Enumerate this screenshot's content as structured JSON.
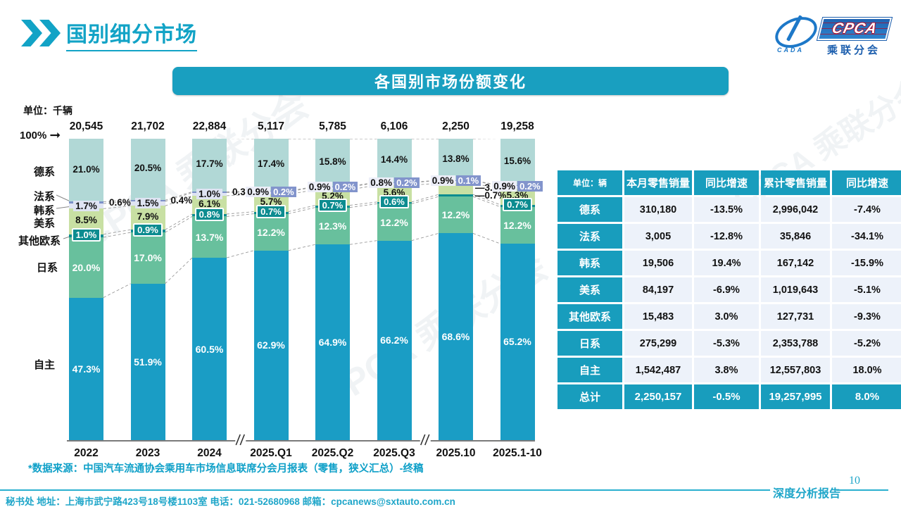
{
  "page": {
    "title": "国别细分市场",
    "page_number": "10",
    "report_label": "深度分析报告",
    "watermark_text": "CPCA 乘联分会"
  },
  "logo": {
    "cpca": "CPCA",
    "sub_brand": "乘联分会",
    "cada": "CADA"
  },
  "banner": {
    "title": "各国别市场份额变化"
  },
  "chart_data": {
    "type": "bar",
    "subtype": "100-percent-stacked-column",
    "title": "各国别市场份额变化",
    "unit_label": "单位：千辆",
    "top_axis_label": "100%",
    "grid": false,
    "connector_style": "dashed",
    "categories": [
      "2022",
      "2023",
      "2024",
      "2025.Q1",
      "2025.Q2",
      "2025.Q3",
      "2025.10",
      "2025.1-10"
    ],
    "totals_thousand_units": [
      "20,545",
      "21,702",
      "22,884",
      "5,117",
      "5,785",
      "6,106",
      "2,250",
      "19,258"
    ],
    "axis_break_after_indices": [
      2,
      5
    ],
    "left_axis_category_labels": [
      "德系",
      "法系",
      "韩系",
      "美系",
      "其他欧系",
      "日系",
      "自主"
    ],
    "series": [
      {
        "name": "自主",
        "color": "#1a9dc5",
        "label_color": "#ffffff",
        "values": [
          47.3,
          51.9,
          60.5,
          62.9,
          64.9,
          66.2,
          68.6,
          65.2
        ]
      },
      {
        "name": "日系",
        "color": "#68c09d",
        "label_color": "#ffffff",
        "values": [
          20.0,
          17.0,
          13.7,
          12.2,
          12.3,
          12.2,
          12.2,
          12.2
        ]
      },
      {
        "name": "其他欧系",
        "color": "#0c8c90",
        "label_color": "#ffffff",
        "values": [
          1.0,
          0.9,
          0.8,
          0.7,
          0.7,
          0.6,
          0.7,
          0.7
        ]
      },
      {
        "name": "美系",
        "color": "#c8e0a3",
        "label_color": "#111111",
        "values": [
          8.5,
          7.9,
          6.1,
          5.7,
          5.2,
          5.6,
          3.7,
          5.3
        ]
      },
      {
        "name": "韩系",
        "color": "#dfe4f3",
        "label_color": "#111111",
        "values": [
          1.7,
          1.5,
          1.0,
          0.9,
          0.9,
          0.8,
          0.9,
          0.9
        ]
      },
      {
        "name": "法系",
        "color": "#7d91c9",
        "label_color": "#ffffff",
        "values": [
          0.6,
          0.4,
          0.3,
          0.2,
          0.2,
          0.2,
          0.1,
          0.2
        ]
      },
      {
        "name": "德系",
        "color": "#b1d8d6",
        "label_color": "#111111",
        "values": [
          21.0,
          20.5,
          17.7,
          17.4,
          15.8,
          14.4,
          13.8,
          15.6
        ]
      }
    ]
  },
  "table": {
    "unit_header": "单位：辆",
    "headers": [
      "本月零售销量",
      "同比增速",
      "累计零售销量",
      "同比增速"
    ],
    "rows": [
      {
        "label": "德系",
        "cells": [
          "310,180",
          "-13.5%",
          "2,996,042",
          "-7.4%"
        ]
      },
      {
        "label": "法系",
        "cells": [
          "3,005",
          "-12.8%",
          "35,846",
          "-34.1%"
        ]
      },
      {
        "label": "韩系",
        "cells": [
          "19,506",
          "19.4%",
          "167,142",
          "-15.9%"
        ]
      },
      {
        "label": "美系",
        "cells": [
          "84,197",
          "-6.9%",
          "1,019,643",
          "-5.1%"
        ]
      },
      {
        "label": "其他欧系",
        "cells": [
          "15,483",
          "3.0%",
          "127,731",
          "-9.3%"
        ]
      },
      {
        "label": "日系",
        "cells": [
          "275,299",
          "-5.3%",
          "2,353,788",
          "-5.2%"
        ]
      },
      {
        "label": "自主",
        "cells": [
          "1,542,487",
          "3.8%",
          "12,557,803",
          "18.0%"
        ]
      }
    ],
    "total_row": {
      "label": "总计",
      "cells": [
        "2,250,157",
        "-0.5%",
        "19,257,995",
        "8.0%"
      ]
    }
  },
  "footnote": "*数据来源：中国汽车流通协会乘用车市场信息联席分会月报表（零售，狭义汇总）-终稿",
  "footer": {
    "left_text": "秘书处  地址：上海市武宁路423号18号楼1103室 电话：021-52680968  邮箱：cpcanews@sxtauto.com.cn"
  },
  "colors": {
    "brand_teal": "#189dbd",
    "banner_teal": "#199fc0",
    "table_cell_bg": "#edf2fa",
    "footer_teal": "#1fa6c9",
    "logo_blue": "#1d5fae"
  }
}
